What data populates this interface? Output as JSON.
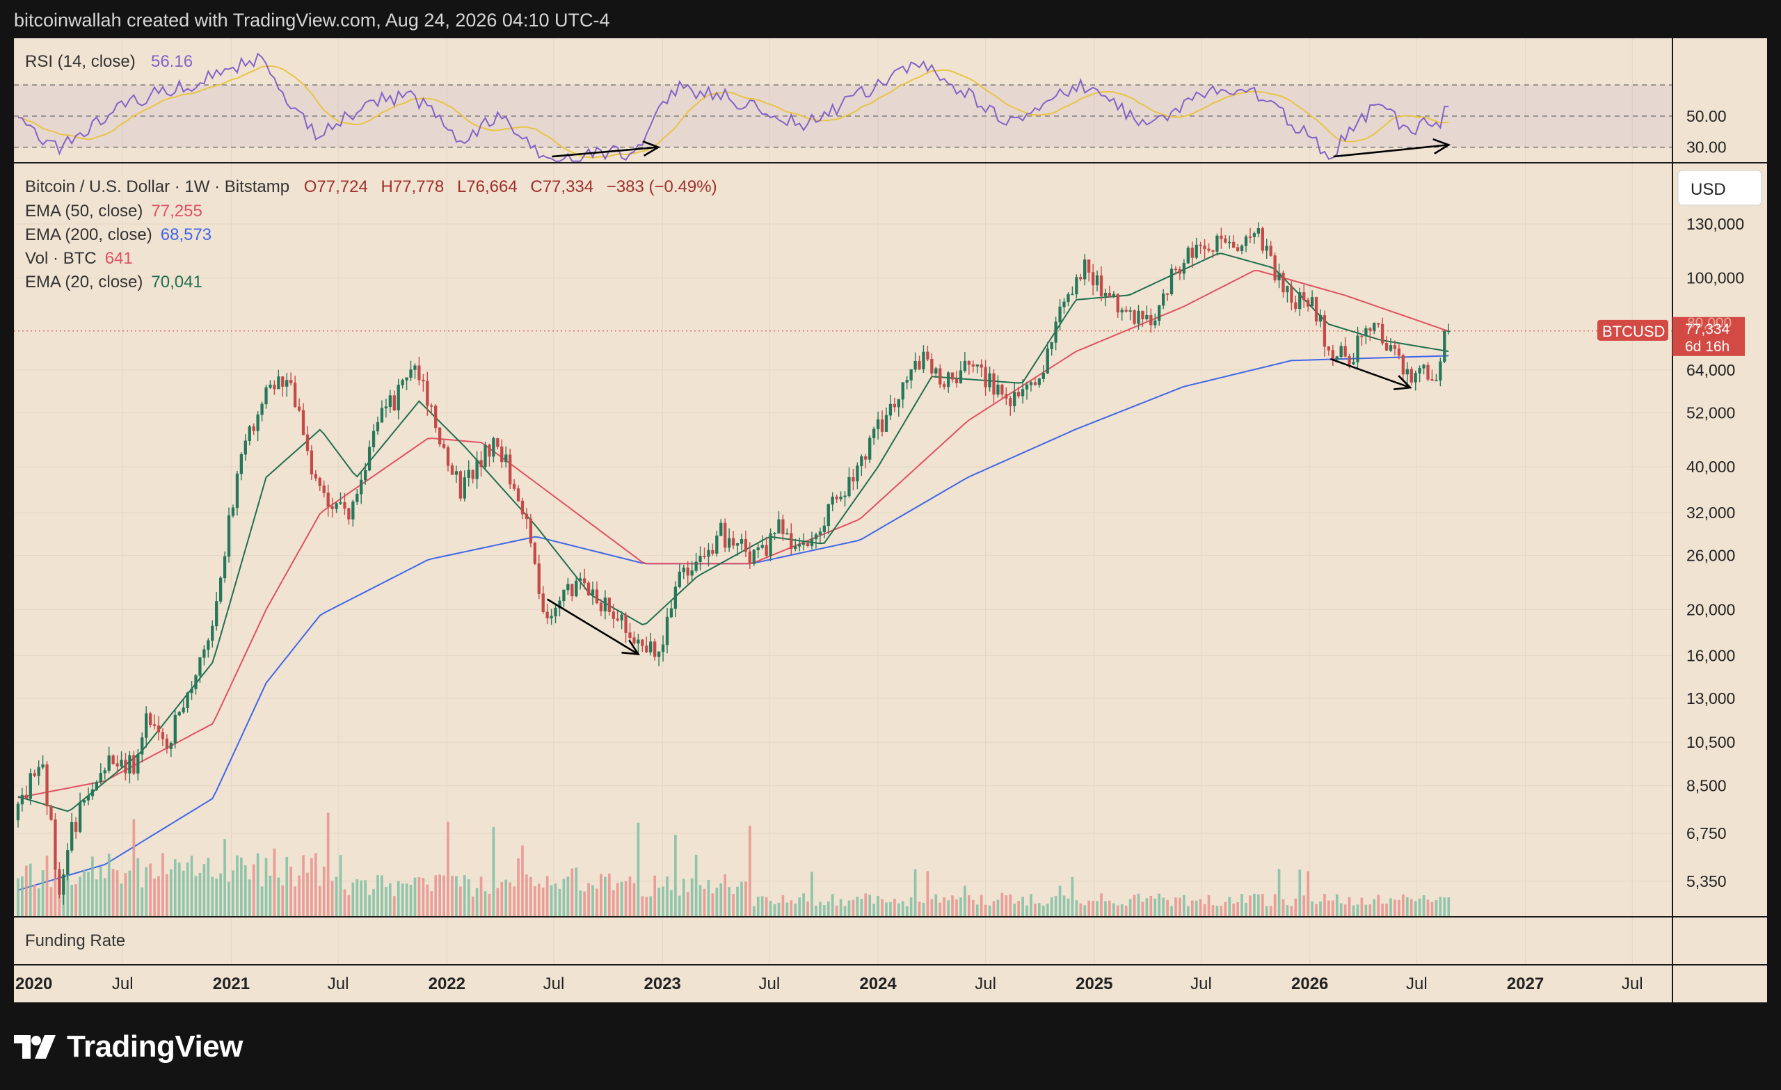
{
  "header": {
    "text": "bitcoinwallah created with TradingView.com, Aug 24, 2026 04:10 UTC-4"
  },
  "footer": {
    "brand": "TradingView"
  },
  "colors": {
    "background": "#f0e3d2",
    "frame": "#131313",
    "up": "#26775a",
    "down": "#c44a48",
    "ema50": "#e05161",
    "ema200": "#4066e8",
    "ema20": "#1f6f4e",
    "rsi": "#8462c8",
    "rsi_ma": "#e8c445",
    "price_badge": "#d24a43"
  },
  "rsi_panel": {
    "legend": {
      "name": "RSI (14, close)",
      "value": "56.16"
    },
    "ticks": [
      "50.00",
      "30.00"
    ]
  },
  "price_panel": {
    "legend": {
      "symbol": "Bitcoin / U.S. Dollar · 1W · Bitstamp",
      "o": "O77,724",
      "h": "H77,778",
      "l": "L76,664",
      "c": "C77,334",
      "chg": "−383 (−0.49%)"
    },
    "indicators": [
      {
        "name": "EMA (50, close)",
        "value": "77,255",
        "color": "#e05161"
      },
      {
        "name": "EMA (200, close)",
        "value": "68,573",
        "color": "#4066e8"
      },
      {
        "name": "Vol · BTC",
        "value": "641",
        "color": "#e05161"
      },
      {
        "name": "EMA (20, close)",
        "value": "70,041",
        "color": "#1f6f4e"
      }
    ],
    "currency_button": "USD",
    "price_badge": {
      "symbol": "BTCUSD",
      "price": "77,334",
      "countdown": "6d 16h"
    },
    "ema50_badge_text": "80,000"
  },
  "funding_panel": {
    "label": "Funding Rate"
  },
  "chart_data": {
    "type": "candlestick",
    "title": "Bitcoin / U.S. Dollar · 1W · Bitstamp",
    "yscale": "log",
    "ylim": [
      4500,
      175000
    ],
    "y_ticks": [
      130000,
      100000,
      64000,
      52000,
      40000,
      32000,
      26000,
      20000,
      16000,
      13000,
      10500,
      8500,
      6750,
      5350
    ],
    "x_ticks": [
      "2020",
      "Jul",
      "2021",
      "Jul",
      "2022",
      "Jul",
      "2023",
      "Jul",
      "2024",
      "Jul",
      "2025",
      "Jul",
      "2026",
      "Jul",
      "2027",
      "Jul"
    ],
    "x_tick_dates": [
      "2020-01-01",
      "2020-07-01",
      "2021-01-01",
      "2021-07-01",
      "2022-01-01",
      "2022-07-01",
      "2023-01-01",
      "2023-07-01",
      "2024-01-01",
      "2024-07-01",
      "2025-01-01",
      "2025-07-01",
      "2026-01-01",
      "2026-07-01",
      "2027-01-01",
      "2027-07-01"
    ],
    "x_range": [
      "2019-12-30",
      "2027-09-07"
    ],
    "last_close": 77334,
    "price_anchors": [
      [
        "2020-01-01",
        7200
      ],
      [
        "2020-02-15",
        9800
      ],
      [
        "2020-03-16",
        5000
      ],
      [
        "2020-04-01",
        6700
      ],
      [
        "2020-06-01",
        9500
      ],
      [
        "2020-07-20",
        9400
      ],
      [
        "2020-08-10",
        11800
      ],
      [
        "2020-09-15",
        10600
      ],
      [
        "2020-10-25",
        13300
      ],
      [
        "2020-12-01",
        19000
      ],
      [
        "2021-01-10",
        38000
      ],
      [
        "2021-02-20",
        55000
      ],
      [
        "2021-04-12",
        62000
      ],
      [
        "2021-05-20",
        37000
      ],
      [
        "2021-07-20",
        31000
      ],
      [
        "2021-09-01",
        48000
      ],
      [
        "2021-11-08",
        65000
      ],
      [
        "2021-12-20",
        47000
      ],
      [
        "2022-01-24",
        36000
      ],
      [
        "2022-03-28",
        46000
      ],
      [
        "2022-05-15",
        30000
      ],
      [
        "2022-06-18",
        19500
      ],
      [
        "2022-08-15",
        23500
      ],
      [
        "2022-10-15",
        19300
      ],
      [
        "2022-11-20",
        16500
      ],
      [
        "2022-12-31",
        16600
      ],
      [
        "2023-01-20",
        22500
      ],
      [
        "2023-04-10",
        29000
      ],
      [
        "2023-06-15",
        25500
      ],
      [
        "2023-07-15",
        30000
      ],
      [
        "2023-09-01",
        26000
      ],
      [
        "2023-10-25",
        34500
      ],
      [
        "2023-12-10",
        43000
      ],
      [
        "2024-03-10",
        68000
      ],
      [
        "2024-05-01",
        60000
      ],
      [
        "2024-06-10",
        67000
      ],
      [
        "2024-08-05",
        54000
      ],
      [
        "2024-10-01",
        63000
      ],
      [
        "2024-11-15",
        90000
      ],
      [
        "2024-12-15",
        104000
      ],
      [
        "2025-02-25",
        86000
      ],
      [
        "2025-04-07",
        78000
      ],
      [
        "2025-05-20",
        106000
      ],
      [
        "2025-07-14",
        119000
      ],
      [
        "2025-08-14",
        118000
      ],
      [
        "2025-10-06",
        123000
      ],
      [
        "2025-11-10",
        100000
      ],
      [
        "2025-11-30",
        88000
      ],
      [
        "2026-01-05",
        91000
      ],
      [
        "2026-02-05",
        69000
      ],
      [
        "2026-03-05",
        68000
      ],
      [
        "2026-04-20",
        78000
      ],
      [
        "2026-05-20",
        71000
      ],
      [
        "2026-06-15",
        62000
      ],
      [
        "2026-07-20",
        63000
      ],
      [
        "2026-08-13",
        64000
      ],
      [
        "2026-08-24",
        77334
      ]
    ],
    "ema200_anchors": [
      [
        "2020-01-01",
        5100
      ],
      [
        "2020-06-01",
        5800
      ],
      [
        "2020-12-01",
        8000
      ],
      [
        "2021-03-01",
        14000
      ],
      [
        "2021-06-01",
        19500
      ],
      [
        "2021-12-01",
        25500
      ],
      [
        "2022-06-01",
        28500
      ],
      [
        "2022-12-01",
        25000
      ],
      [
        "2023-06-01",
        25000
      ],
      [
        "2023-12-01",
        28000
      ],
      [
        "2024-06-01",
        38000
      ],
      [
        "2024-12-01",
        48000
      ],
      [
        "2025-06-01",
        59000
      ],
      [
        "2025-12-01",
        67000
      ],
      [
        "2026-08-24",
        68573
      ]
    ],
    "ema50_anchors": [
      [
        "2020-01-01",
        8000
      ],
      [
        "2020-06-01",
        8700
      ],
      [
        "2020-12-01",
        11500
      ],
      [
        "2021-03-01",
        20000
      ],
      [
        "2021-06-01",
        32000
      ],
      [
        "2021-12-01",
        46000
      ],
      [
        "2022-03-01",
        45000
      ],
      [
        "2022-06-01",
        37000
      ],
      [
        "2022-12-01",
        25000
      ],
      [
        "2023-06-01",
        25000
      ],
      [
        "2023-12-01",
        31000
      ],
      [
        "2024-06-01",
        50000
      ],
      [
        "2024-12-01",
        70000
      ],
      [
        "2025-06-01",
        87000
      ],
      [
        "2025-10-01",
        104000
      ],
      [
        "2026-03-01",
        92000
      ],
      [
        "2026-08-24",
        77255
      ]
    ],
    "ema20_anchors": [
      [
        "2020-01-01",
        8100
      ],
      [
        "2020-04-01",
        7500
      ],
      [
        "2020-08-01",
        10000
      ],
      [
        "2020-12-01",
        15500
      ],
      [
        "2021-03-01",
        38000
      ],
      [
        "2021-06-01",
        48000
      ],
      [
        "2021-08-01",
        38000
      ],
      [
        "2021-11-15",
        55000
      ],
      [
        "2022-02-01",
        44000
      ],
      [
        "2022-06-01",
        30000
      ],
      [
        "2022-09-01",
        21500
      ],
      [
        "2022-12-01",
        18500
      ],
      [
        "2023-03-01",
        23500
      ],
      [
        "2023-07-01",
        28500
      ],
      [
        "2023-10-01",
        27500
      ],
      [
        "2024-01-01",
        40000
      ],
      [
        "2024-04-01",
        62000
      ],
      [
        "2024-09-01",
        60000
      ],
      [
        "2024-12-01",
        90000
      ],
      [
        "2025-03-01",
        92000
      ],
      [
        "2025-08-01",
        113000
      ],
      [
        "2025-11-01",
        105000
      ],
      [
        "2026-02-01",
        80000
      ],
      [
        "2026-05-01",
        74000
      ],
      [
        "2026-08-24",
        70041
      ]
    ],
    "rsi": {
      "ylim": [
        20,
        100
      ],
      "levels": [
        70,
        50,
        30
      ],
      "last": 56.16,
      "anchors": [
        [
          "2020-01-01",
          48
        ],
        [
          "2020-03-16",
          28
        ],
        [
          "2020-07-01",
          58
        ],
        [
          "2020-12-01",
          75
        ],
        [
          "2021-02-15",
          88
        ],
        [
          "2021-05-25",
          37
        ],
        [
          "2021-09-01",
          60
        ],
        [
          "2021-11-08",
          62
        ],
        [
          "2022-01-24",
          35
        ],
        [
          "2022-03-28",
          50
        ],
        [
          "2022-06-18",
          23
        ],
        [
          "2022-11-20",
          27
        ],
        [
          "2023-01-20",
          68
        ],
        [
          "2023-04-10",
          63
        ],
        [
          "2023-09-01",
          45
        ],
        [
          "2024-03-10",
          84
        ],
        [
          "2024-08-05",
          47
        ],
        [
          "2024-12-15",
          70
        ],
        [
          "2025-04-07",
          43
        ],
        [
          "2025-07-14",
          67
        ],
        [
          "2025-10-06",
          64
        ],
        [
          "2026-02-05",
          25
        ],
        [
          "2026-04-20",
          57
        ],
        [
          "2026-06-15",
          42
        ],
        [
          "2026-08-13",
          47
        ],
        [
          "2026-08-24",
          56.16
        ]
      ]
    },
    "volume": {
      "max_btc": 11000,
      "last": 641
    },
    "divergences": {
      "price": [
        [
          [
            "2022-06-20",
            19000
          ],
          [
            "2022-11-21",
            14800
          ]
        ],
        [
          [
            "2026-02-05",
            61000
          ],
          [
            "2026-06-20",
            54000
          ]
        ]
      ],
      "rsi": [
        [
          [
            "2022-06-28",
            24
          ],
          [
            "2022-12-25",
            30
          ]
        ],
        [
          [
            "2026-02-10",
            24
          ],
          [
            "2026-08-24",
            31.5
          ]
        ]
      ]
    }
  }
}
